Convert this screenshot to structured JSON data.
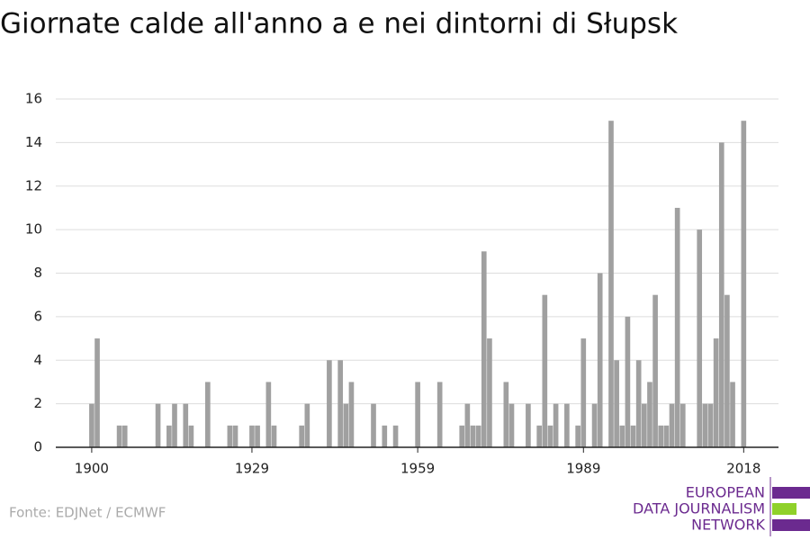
{
  "chart_data": {
    "type": "bar",
    "title": "Giornate calde all'anno a e nei dintorni di Słupsk",
    "source": "Fonte: EDJNet / ECMWF",
    "logo": [
      "EUROPEAN",
      "DATA JOURNALISM",
      "NETWORK"
    ],
    "x": [
      1900,
      1901,
      1905,
      1906,
      1912,
      1914,
      1915,
      1917,
      1918,
      1921,
      1925,
      1926,
      1929,
      1930,
      1932,
      1933,
      1938,
      1939,
      1943,
      1945,
      1946,
      1947,
      1951,
      1953,
      1955,
      1959,
      1963,
      1967,
      1968,
      1969,
      1970,
      1971,
      1972,
      1975,
      1976,
      1979,
      1981,
      1982,
      1983,
      1984,
      1986,
      1988,
      1989,
      1991,
      1992,
      1994,
      1995,
      1996,
      1997,
      1998,
      1999,
      2000,
      2001,
      2002,
      2003,
      2004,
      2005,
      2006,
      2007,
      2010,
      2011,
      2012,
      2013,
      2014,
      2015,
      2016,
      2018
    ],
    "values": [
      2,
      5,
      1,
      1,
      2,
      1,
      2,
      2,
      1,
      3,
      1,
      1,
      1,
      1,
      3,
      1,
      1,
      2,
      4,
      4,
      2,
      3,
      2,
      1,
      1,
      3,
      3,
      1,
      2,
      1,
      1,
      9,
      5,
      3,
      2,
      2,
      1,
      7,
      1,
      2,
      2,
      1,
      5,
      2,
      8,
      15,
      4,
      1,
      6,
      1,
      4,
      2,
      3,
      7,
      1,
      1,
      2,
      11,
      2,
      10,
      2,
      2,
      5,
      14,
      7,
      3,
      15
    ],
    "color": "#a0a0a0",
    "xlim": [
      1893.5,
      2024.3
    ],
    "xticks": [
      1900,
      1929,
      1959,
      1989,
      2018
    ],
    "ylim": [
      0,
      16
    ],
    "yticks": [
      0,
      2,
      4,
      6,
      8,
      10,
      12,
      14,
      16
    ],
    "grid": true
  }
}
